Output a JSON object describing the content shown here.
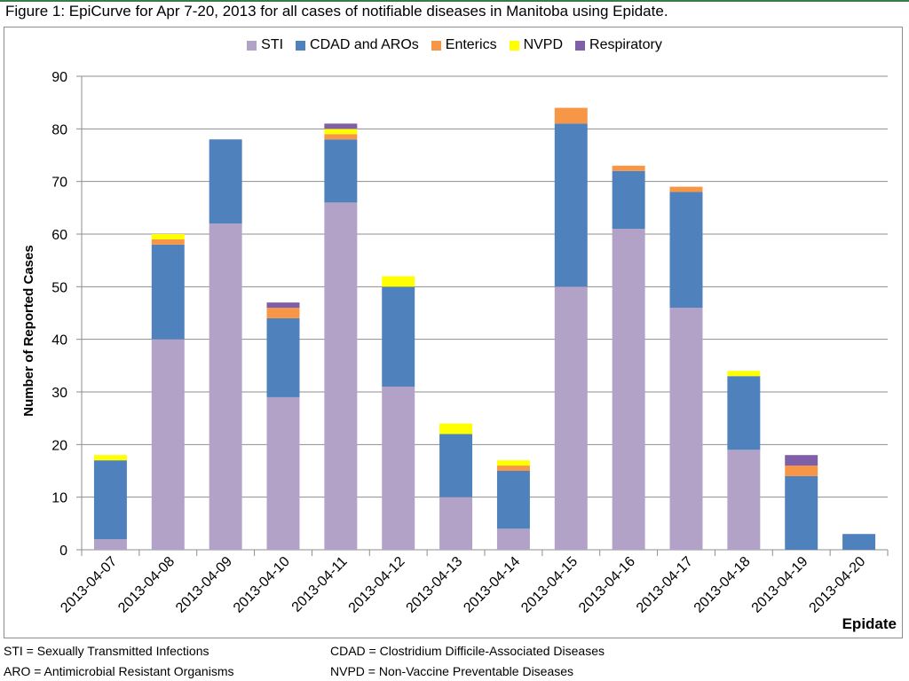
{
  "title": "Figure 1: EpiCurve for Apr 7-20, 2013 for all cases of notifiable diseases in Manitoba using Epidate.",
  "notes": {
    "sti": "STI = Sexually Transmitted Infections",
    "aro": "ARO = Antimicrobial Resistant Organisms",
    "cdad": "CDAD = Clostridium  Difficile-Associated Diseases",
    "nvpd": "NVPD = Non-Vaccine Preventable Diseases"
  },
  "chart_data": {
    "type": "bar",
    "stacked": true,
    "title": "Figure 1: EpiCurve for Apr 7-20, 2013 for all cases of notifiable diseases in Manitoba using Epidate.",
    "xlabel": "Epidate",
    "ylabel": "Number of Reported Cases",
    "ylim": [
      0,
      90
    ],
    "yticks": [
      0,
      10,
      20,
      30,
      40,
      50,
      60,
      70,
      80,
      90
    ],
    "grid": true,
    "legend_position": "top",
    "categories": [
      "2013-04-07",
      "2013-04-08",
      "2013-04-09",
      "2013-04-10",
      "2013-04-11",
      "2013-04-12",
      "2013-04-13",
      "2013-04-14",
      "2013-04-15",
      "2013-04-16",
      "2013-04-17",
      "2013-04-18",
      "2013-04-19",
      "2013-04-20"
    ],
    "series": [
      {
        "name": "STI",
        "color": "#b3a2c7",
        "values": [
          2,
          40,
          62,
          29,
          66,
          31,
          10,
          4,
          50,
          61,
          46,
          19,
          0,
          0
        ]
      },
      {
        "name": "CDAD and AROs",
        "color": "#4f81bd",
        "values": [
          15,
          18,
          16,
          15,
          12,
          19,
          12,
          11,
          31,
          11,
          22,
          14,
          14,
          3
        ]
      },
      {
        "name": "Enterics",
        "color": "#f79646",
        "values": [
          0,
          1,
          0,
          2,
          1,
          0,
          0,
          1,
          3,
          1,
          1,
          0,
          2,
          0
        ]
      },
      {
        "name": "NVPD",
        "color": "#ffff00",
        "values": [
          1,
          1,
          0,
          0,
          1,
          2,
          2,
          1,
          0,
          0,
          0,
          1,
          0,
          0
        ]
      },
      {
        "name": "Respiratory",
        "color": "#7f5fa8",
        "values": [
          0,
          0,
          0,
          1,
          1,
          0,
          0,
          0,
          0,
          0,
          0,
          0,
          2,
          0
        ]
      }
    ]
  }
}
